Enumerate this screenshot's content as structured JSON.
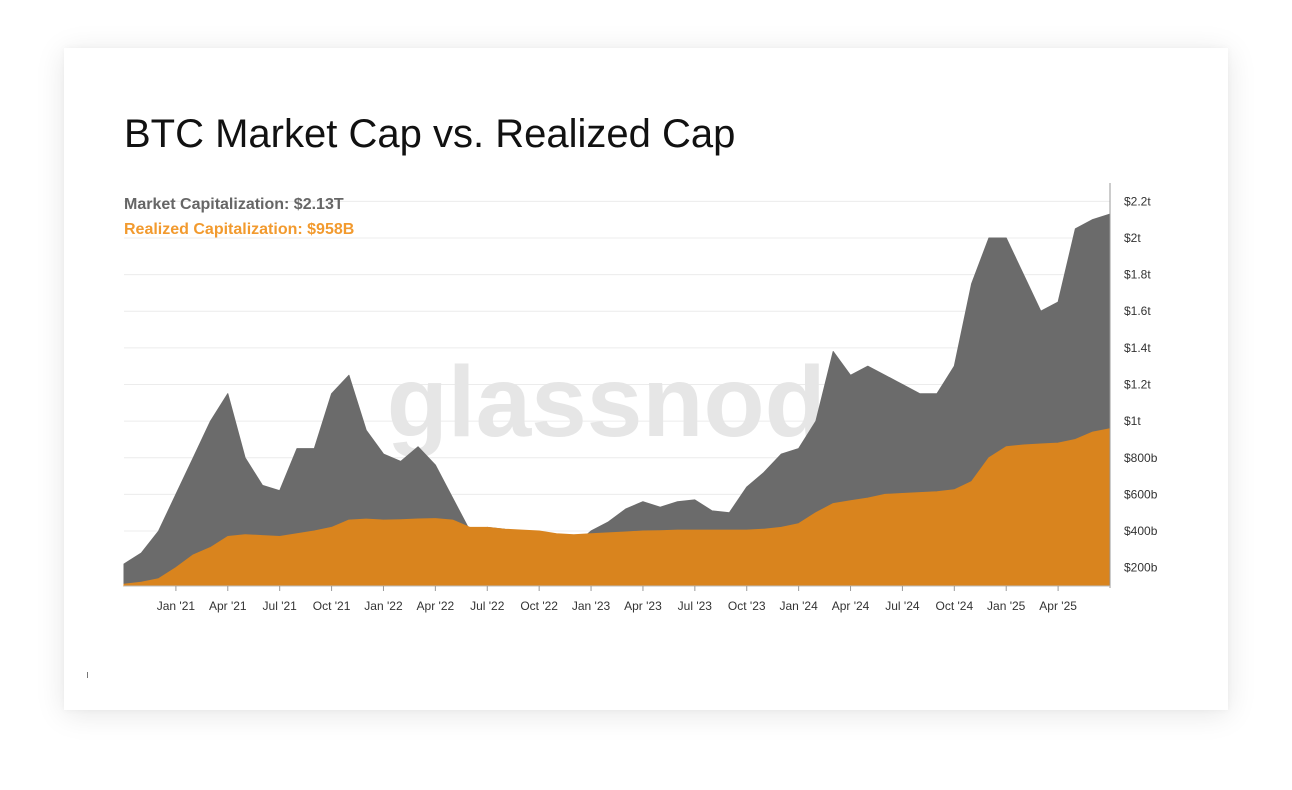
{
  "chart_data": {
    "type": "area",
    "title": "BTC Market Cap vs. Realized Cap",
    "watermark": "glassnode",
    "legend_placement": "top-left",
    "grid": true,
    "x_axis": {
      "range": [
        "2020-10",
        "2025-07"
      ],
      "tick_labels": [
        "Jan '21",
        "Apr '21",
        "Jul '21",
        "Oct '21",
        "Jan '22",
        "Apr '22",
        "Jul '22",
        "Oct '22",
        "Jan '23",
        "Apr '23",
        "Jul '23",
        "Oct '23",
        "Jan '24",
        "Apr '24",
        "Jul '24",
        "Oct '24",
        "Jan '25",
        "Apr '25"
      ]
    },
    "y_axis": {
      "position": "right",
      "range_billions": [
        100,
        2300
      ],
      "tick_labels": [
        "$2.2t",
        "$2t",
        "$1.8t",
        "$1.6t",
        "$1.4t",
        "$1.2t",
        "$1t",
        "$800b",
        "$600b",
        "$400b",
        "$200b"
      ]
    },
    "x": [
      "2020-10",
      "2020-11",
      "2020-12",
      "2021-01",
      "2021-02",
      "2021-03",
      "2021-04",
      "2021-05",
      "2021-06",
      "2021-07",
      "2021-08",
      "2021-09",
      "2021-10",
      "2021-11",
      "2021-12",
      "2022-01",
      "2022-02",
      "2022-03",
      "2022-04",
      "2022-05",
      "2022-06",
      "2022-07",
      "2022-08",
      "2022-09",
      "2022-10",
      "2022-11",
      "2022-12",
      "2023-01",
      "2023-02",
      "2023-03",
      "2023-04",
      "2023-05",
      "2023-06",
      "2023-07",
      "2023-08",
      "2023-09",
      "2023-10",
      "2023-11",
      "2023-12",
      "2024-01",
      "2024-02",
      "2024-03",
      "2024-04",
      "2024-05",
      "2024-06",
      "2024-07",
      "2024-08",
      "2024-09",
      "2024-10",
      "2024-11",
      "2024-12",
      "2025-01",
      "2025-02",
      "2025-03",
      "2025-04",
      "2025-05",
      "2025-06",
      "2025-07"
    ],
    "series": [
      {
        "name": "Market Capitalization",
        "color": "#6b6b6b",
        "unit": "billions USD",
        "values": [
          220,
          280,
          400,
          600,
          800,
          1000,
          1150,
          800,
          650,
          620,
          850,
          850,
          1150,
          1250,
          950,
          820,
          780,
          860,
          760,
          580,
          400,
          420,
          410,
          380,
          380,
          320,
          320,
          400,
          450,
          520,
          560,
          530,
          560,
          570,
          510,
          500,
          640,
          720,
          820,
          850,
          1000,
          1380,
          1250,
          1300,
          1250,
          1200,
          1150,
          1150,
          1300,
          1750,
          2000,
          2000,
          1800,
          1600,
          1650,
          2050,
          2100,
          2130
        ]
      },
      {
        "name": "Realized Capitalization",
        "color": "#d9841e",
        "unit": "billions USD",
        "values": [
          110,
          120,
          140,
          200,
          270,
          310,
          370,
          380,
          375,
          370,
          385,
          400,
          420,
          460,
          465,
          460,
          462,
          466,
          468,
          460,
          420,
          420,
          410,
          405,
          400,
          385,
          380,
          385,
          390,
          395,
          400,
          402,
          405,
          405,
          405,
          405,
          405,
          410,
          420,
          440,
          500,
          550,
          565,
          580,
          600,
          605,
          610,
          615,
          625,
          670,
          800,
          860,
          870,
          875,
          880,
          900,
          940,
          958
        ]
      }
    ],
    "legend": {
      "market_label": "Market Capitalization: $2.13T",
      "realized_label": "Realized Capitalization: $958B",
      "market_color": "#666666",
      "realized_color": "#f29a2e"
    }
  }
}
